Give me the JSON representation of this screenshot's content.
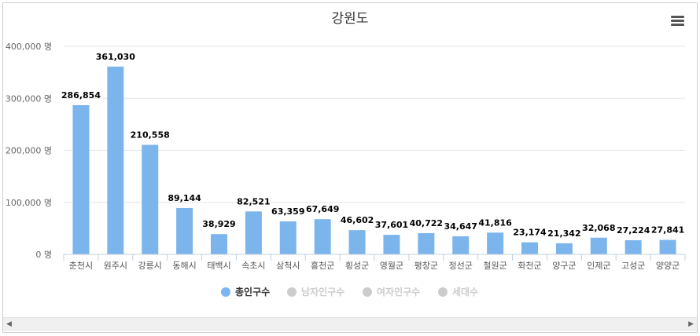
{
  "chart_data": {
    "type": "bar",
    "title": "강원도",
    "categories": [
      "춘천시",
      "원주시",
      "강릉시",
      "동해시",
      "태백시",
      "속초시",
      "삼척시",
      "홍천군",
      "횡성군",
      "영월군",
      "평창군",
      "정선군",
      "철원군",
      "화천군",
      "양구군",
      "인제군",
      "고성군",
      "양양군"
    ],
    "series": [
      {
        "name": "총인구수",
        "color": "#7cb5ec",
        "visible": true,
        "values": [
          286854,
          361030,
          210558,
          89144,
          38929,
          82521,
          63359,
          67649,
          46602,
          37601,
          40722,
          34647,
          41816,
          23174,
          21342,
          32068,
          27224,
          27841
        ]
      },
      {
        "name": "남자인구수",
        "visible": false
      },
      {
        "name": "여자인구수",
        "visible": false
      },
      {
        "name": "세대수",
        "visible": false
      }
    ],
    "data_labels": [
      "286,854",
      "361,030",
      "210,558",
      "89,144",
      "38,929",
      "82,521",
      "63,359",
      "67,649",
      "46,602",
      "37,601",
      "40,722",
      "34,647",
      "41,816",
      "23,174",
      "21,342",
      "32,068",
      "27,224",
      "27,841"
    ],
    "yticks": [
      0,
      100000,
      200000,
      300000,
      400000
    ],
    "ytick_labels": [
      "0 명",
      "100,000 명",
      "200,000 명",
      "300,000 명",
      "400,000 명"
    ],
    "ylim": [
      0,
      400000
    ],
    "xlabel": "",
    "ylabel": "",
    "grid": true,
    "legend_position": "bottom-center",
    "hidden_series_color": "#cccccc"
  },
  "menu": {
    "icon": "hamburger-menu-icon"
  },
  "scrollbar": {
    "left_arrow": "◀",
    "right_arrow": "▶"
  }
}
